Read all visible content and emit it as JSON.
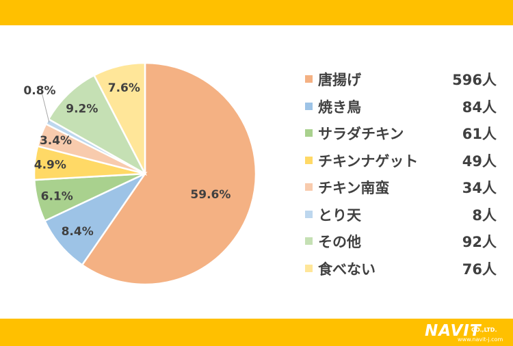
{
  "chart_data": {
    "type": "pie",
    "categories": [
      "唐揚げ",
      "焼き鳥",
      "サラダチキン",
      "チキンナゲット",
      "チキン南蛮",
      "とり天",
      "その他",
      "食べない"
    ],
    "values": [
      59.6,
      8.4,
      6.1,
      4.9,
      3.4,
      0.8,
      9.2,
      7.6
    ],
    "counts": [
      "596人",
      "84人",
      "61人",
      "49人",
      "34人",
      "8人",
      "92人",
      "76人"
    ],
    "labels": [
      "59.6%",
      "8.4%",
      "6.1%",
      "4.9%",
      "3.4%",
      "0.8%",
      "9.2%",
      "7.6%"
    ],
    "colors": [
      "#f4b183",
      "#9dc3e6",
      "#a9d18e",
      "#ffd966",
      "#f8cbad",
      "#bdd7ee",
      "#c5e0b4",
      "#ffe699"
    ],
    "legend_position": "right"
  },
  "colors": {
    "banner": "#ffc000",
    "text": "#404040"
  },
  "logo": {
    "mark": "NAVIT",
    "company": "CO.,LTD.",
    "url": "www.navit-j.com"
  }
}
